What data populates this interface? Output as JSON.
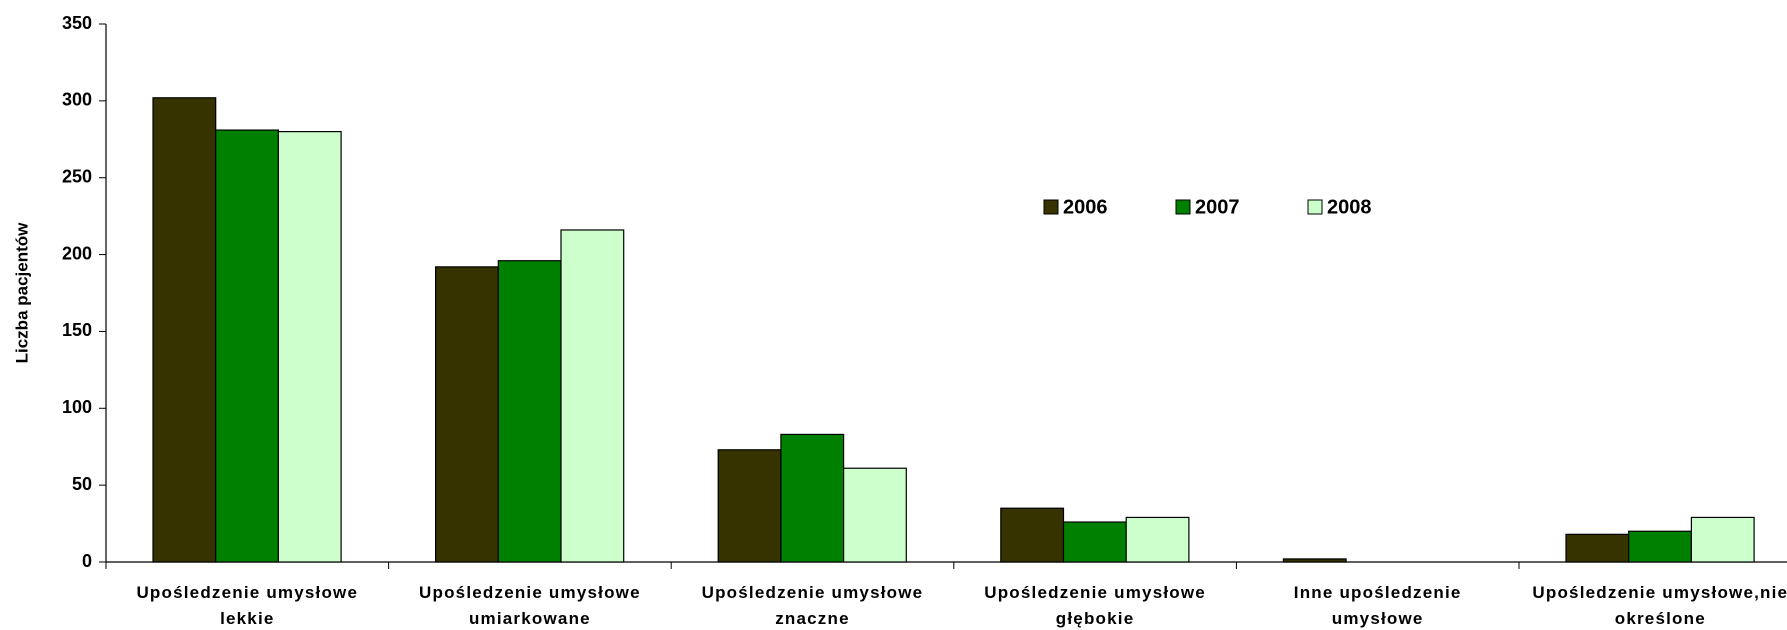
{
  "chart_data": {
    "type": "bar",
    "y_axis_label": "Liczba pacjentów",
    "categories": [
      "Upośledzenie umysłowe lekkie",
      "Upośledzenie umysłowe umiarkowane",
      "Upośledzenie umysłowe znaczne",
      "Upośledzenie umysłowe głębokie",
      "Inne upośledzenie umysłowe",
      "Upośledzenie umysłowe,nie określone"
    ],
    "series": [
      {
        "name": "2006",
        "color": "#363300",
        "values": [
          302,
          192,
          73,
          35,
          2,
          18
        ]
      },
      {
        "name": "2007",
        "color": "#008000",
        "values": [
          281,
          196,
          83,
          26,
          0,
          20
        ]
      },
      {
        "name": "2008",
        "color": "#ccffcc",
        "values": [
          280,
          216,
          61,
          29,
          0,
          29
        ]
      }
    ],
    "ylim": [
      0,
      350
    ],
    "yticks": [
      0,
      50,
      100,
      150,
      200,
      250,
      300,
      350
    ],
    "grid": false
  }
}
